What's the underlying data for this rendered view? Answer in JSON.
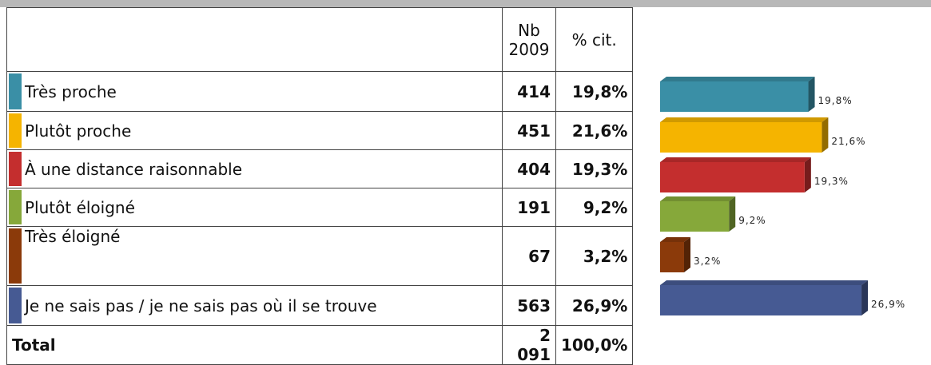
{
  "header": {
    "count": [
      "Nb",
      "2009"
    ],
    "percent": "% cit."
  },
  "rows": [
    {
      "label": "Très proche",
      "count": "414",
      "percent": "19,8%",
      "color": "#3a8fa6"
    },
    {
      "label": "Plutôt proche",
      "count": "451",
      "percent": "21,6%",
      "color": "#f5b400"
    },
    {
      "label": "À une distance raisonnable",
      "count": "404",
      "percent": "19,3%",
      "color": "#c42e2e"
    },
    {
      "label": "Plutôt éloigné",
      "count": "191",
      "percent": "9,2%",
      "color": "#86a83a"
    },
    {
      "label": "Très éloigné",
      "count": "67",
      "percent": "3,2%",
      "color": "#8b3a0a"
    },
    {
      "label": "Je ne sais pas / je ne sais pas où il se trouve",
      "count": "563",
      "percent": "26,9%",
      "color": "#465a93"
    }
  ],
  "total": {
    "label": "Total",
    "count": "2 091",
    "percent": "100,0%"
  },
  "chart_data": {
    "type": "bar",
    "values": [
      19.8,
      21.6,
      19.3,
      9.2,
      3.2,
      26.9
    ],
    "value_labels": [
      "19,8%",
      "21,6%",
      "19,3%",
      "9,2%",
      "3,2%",
      "26,9%"
    ],
    "colors": [
      "#3a8fa6",
      "#f5b400",
      "#c42e2e",
      "#86a83a",
      "#8b3a0a",
      "#465a93"
    ]
  }
}
